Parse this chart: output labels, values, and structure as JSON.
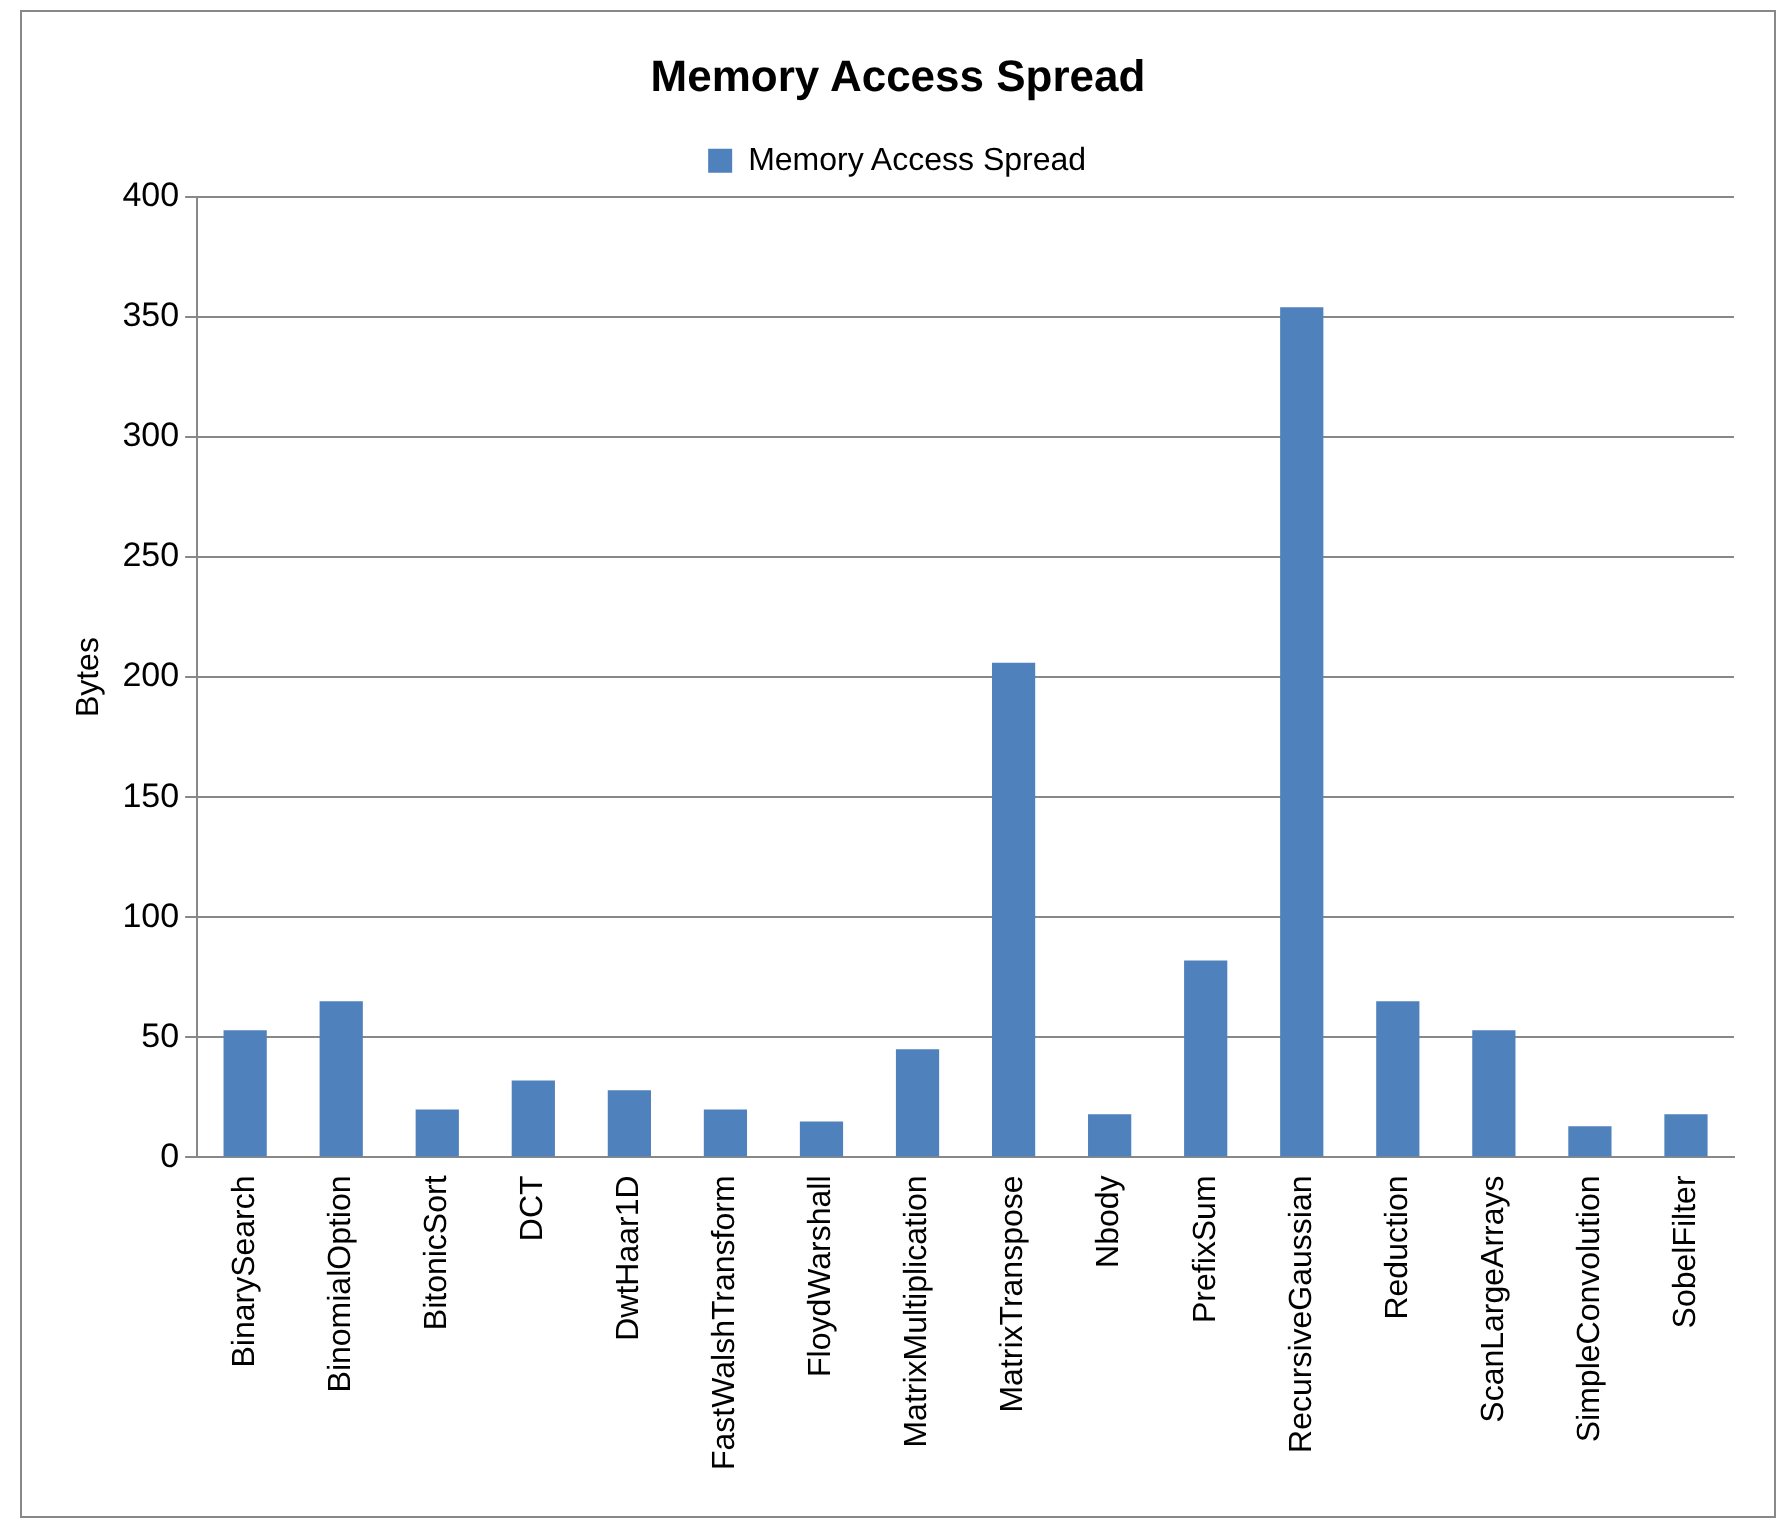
{
  "chart_data": {
    "type": "bar",
    "title": "Memory Access Spread",
    "ylabel": "Bytes",
    "categories": [
      "BinarySearch",
      "BinomialOption",
      "BitonicSort",
      "DCT",
      "DwtHaar1D",
      "FastWalshTransform",
      "FloydWarshall",
      "MatrixMultiplication",
      "MatrixTranspose",
      "Nbody",
      "PrefixSum",
      "RecursiveGaussian",
      "Reduction",
      "ScanLargeArrays",
      "SimpleConvolution",
      "SobelFilter"
    ],
    "series": [
      {
        "name": "Memory Access Spread",
        "color": "#4f81bd",
        "values": [
          53,
          65,
          20,
          32,
          28,
          20,
          15,
          45,
          206,
          18,
          82,
          354,
          65,
          53,
          13,
          18
        ]
      }
    ],
    "ylim": [
      0,
      400
    ],
    "yticks": [
      0,
      50,
      100,
      150,
      200,
      250,
      300,
      350,
      400
    ],
    "grid": "y",
    "legend": "top"
  }
}
